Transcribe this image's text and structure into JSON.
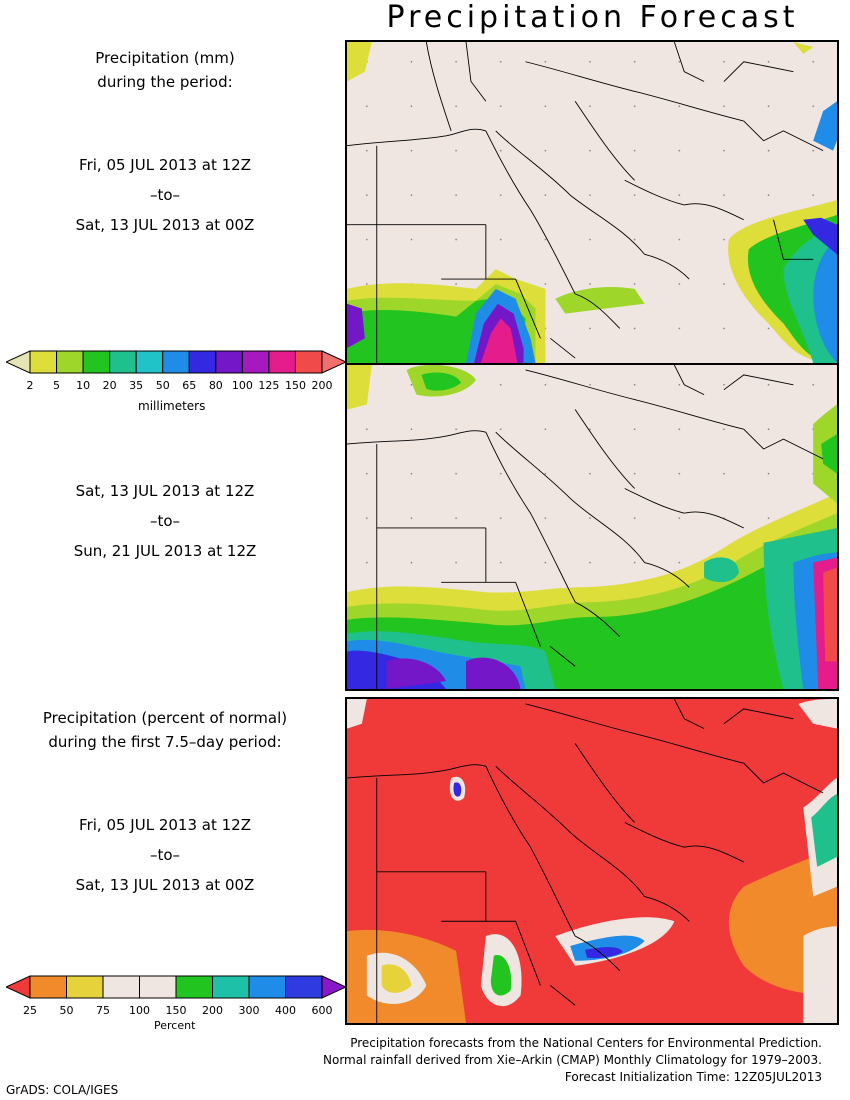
{
  "title": "Precipitation Forecast",
  "top_block": {
    "heading_line1": "Precipitation (mm)",
    "heading_line2": "during the period:",
    "period1": {
      "start": "Fri, 05 JUL 2013 at 12Z",
      "to": "–to–",
      "end": "Sat, 13 JUL 2013 at 00Z"
    },
    "period2": {
      "start": "Sat, 13 JUL 2013 at 12Z",
      "to": "–to–",
      "end": "Sun, 21 JUL 2013 at 12Z"
    }
  },
  "mm_colorbar": {
    "ticks": [
      "2",
      "5",
      "10",
      "20",
      "35",
      "50",
      "65",
      "80",
      "100",
      "125",
      "150",
      "200"
    ],
    "unit": "millimeters",
    "colors": [
      "#e6e6b4",
      "#dede3a",
      "#9ed62a",
      "#22c51f",
      "#1fc08c",
      "#20c3c7",
      "#1f8de8",
      "#3528e2",
      "#7417c9",
      "#a619bf",
      "#e41c8c",
      "#f04a4a",
      "#f07070"
    ]
  },
  "bottom_block": {
    "heading_line1": "Precipitation (percent of normal)",
    "heading_line2": "during the first 7.5–day period:",
    "period": {
      "start": "Fri, 05 JUL 2013 at 12Z",
      "to": "–to–",
      "end": "Sat, 13 JUL 2013 at 00Z"
    }
  },
  "pct_colorbar": {
    "ticks": [
      "25",
      "50",
      "75",
      "100",
      "150",
      "200",
      "300",
      "400",
      "600"
    ],
    "unit": "Percent",
    "colors": [
      "#f03a3a",
      "#f08a2a",
      "#e6d23a",
      "#efe5e1",
      "#efe5e1",
      "#22c51f",
      "#1fc0a8",
      "#1f8de8",
      "#2f3ae0",
      "#8a17c9"
    ]
  },
  "footer": {
    "line1": "Precipitation forecasts from the National Centers for Environmental Prediction.",
    "line2": "Normal rainfall derived from Xie–Arkin (CMAP) Monthly Climatology for 1979–2003.",
    "line3": "Forecast Initialization Time: 12Z05JUL2013"
  },
  "credit": "GrADS: COLA/IGES"
}
